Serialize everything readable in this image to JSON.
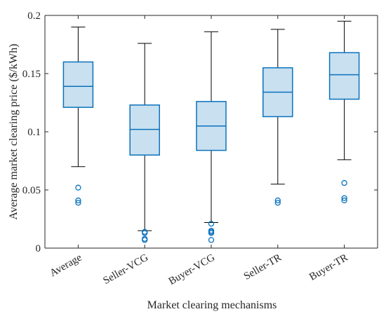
{
  "chart_data": {
    "type": "box",
    "title": "",
    "xlabel": "Market clearing mechanisms",
    "ylabel": "Average market clearing price ($/kWh)",
    "ylim": [
      0,
      0.2
    ],
    "yticks": [
      0,
      0.05,
      0.1,
      0.15,
      0.2
    ],
    "ytick_labels": [
      "0",
      "0.05",
      "0.1",
      "0.15",
      "0.2"
    ],
    "categories": [
      "Average",
      "Seller-VCG",
      "Buyer-VCG",
      "Seller-TR",
      "Buyer-TR"
    ],
    "boxes": [
      {
        "category": "Average",
        "whisker_low": 0.07,
        "q1": 0.121,
        "median": 0.139,
        "q3": 0.16,
        "whisker_high": 0.19,
        "outliers": [
          0.052,
          0.041,
          0.039
        ]
      },
      {
        "category": "Seller-VCG",
        "whisker_low": 0.015,
        "q1": 0.08,
        "median": 0.102,
        "q3": 0.123,
        "whisker_high": 0.176,
        "outliers": [
          0.014,
          0.013,
          0.008,
          0.007
        ]
      },
      {
        "category": "Buyer-VCG",
        "whisker_low": 0.022,
        "q1": 0.084,
        "median": 0.105,
        "q3": 0.126,
        "whisker_high": 0.186,
        "outliers": [
          0.021,
          0.015,
          0.014,
          0.013,
          0.007
        ]
      },
      {
        "category": "Seller-TR",
        "whisker_low": 0.055,
        "q1": 0.113,
        "median": 0.134,
        "q3": 0.155,
        "whisker_high": 0.188,
        "outliers": [
          0.041,
          0.039
        ]
      },
      {
        "category": "Buyer-TR",
        "whisker_low": 0.076,
        "q1": 0.128,
        "median": 0.149,
        "q3": 0.168,
        "whisker_high": 0.195,
        "outliers": [
          0.056,
          0.043,
          0.041
        ]
      }
    ],
    "grid": false,
    "legend": "none",
    "colors": {
      "box_fill": "#c9e0f0",
      "box_edge": "#0a72bd",
      "whisker": "#000000",
      "outlier": "#0a72bd",
      "axis": "#262626"
    }
  }
}
